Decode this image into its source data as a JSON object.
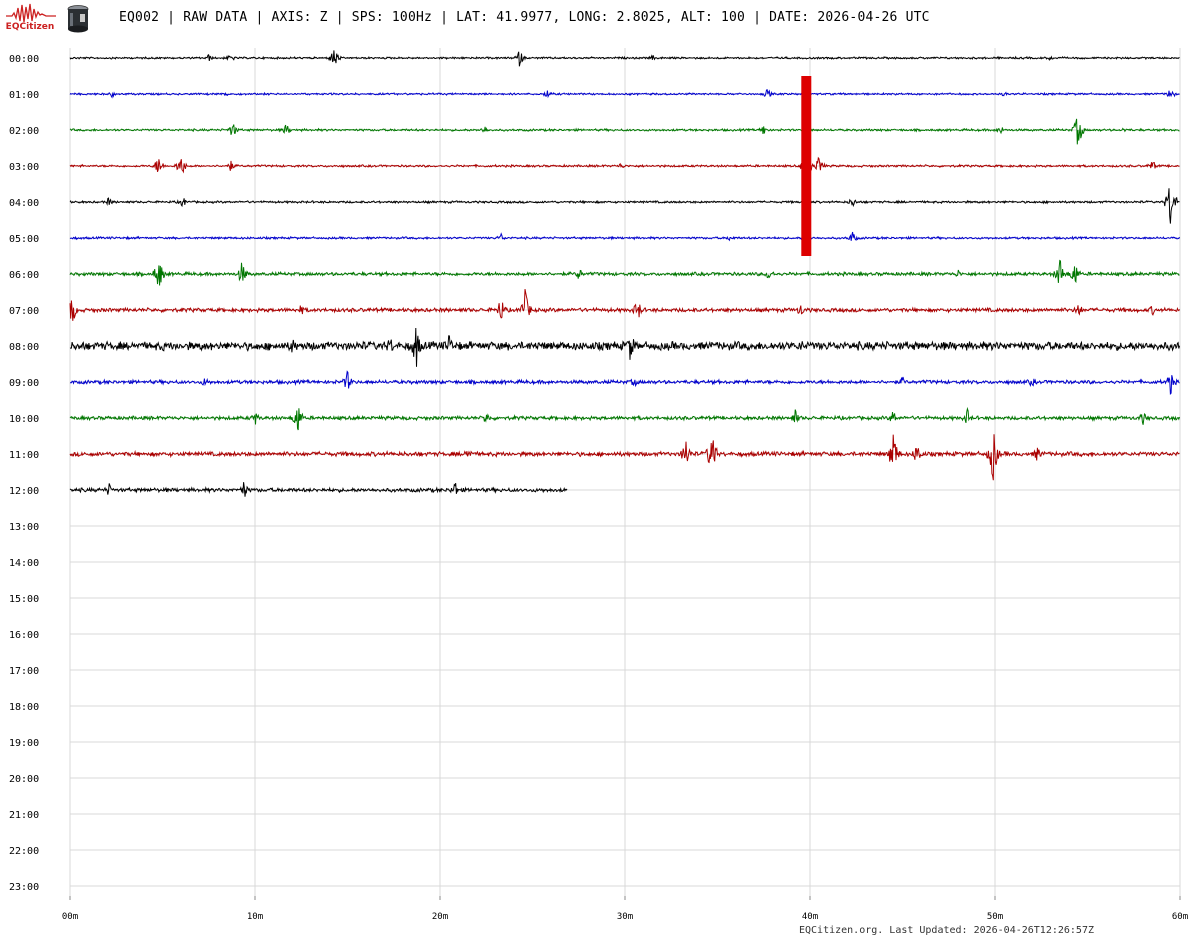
{
  "header": {
    "logo_text": "EQCitizen",
    "title": "EQ002 | RAW DATA | AXIS: Z | SPS: 100Hz | LAT: 41.9977, LONG: 2.8025, ALT: 100 | DATE: 2026-04-26 UTC"
  },
  "footer": {
    "text": "EQCitizen.org. Last Updated: 2026-04-26T12:26:57Z"
  },
  "colors": {
    "trace_cycle": [
      "#000000",
      "#0000cc",
      "#007700",
      "#aa0000"
    ],
    "event_marker": "#dd0000",
    "grid": "#d8d8d8"
  },
  "chart_data": {
    "type": "line",
    "title": "",
    "xlabel": "",
    "ylabel": "",
    "x_unit": "minutes",
    "xlim": [
      0,
      60
    ],
    "x_ticks": [
      0,
      10,
      20,
      30,
      40,
      50,
      60
    ],
    "x_tick_labels": [
      "00m",
      "10m",
      "20m",
      "30m",
      "40m",
      "50m",
      "60m"
    ],
    "rows": [
      "00:00",
      "01:00",
      "02:00",
      "03:00",
      "04:00",
      "05:00",
      "06:00",
      "07:00",
      "08:00",
      "09:00",
      "10:00",
      "11:00",
      "12:00",
      "13:00",
      "14:00",
      "15:00",
      "16:00",
      "17:00",
      "18:00",
      "19:00",
      "20:00",
      "21:00",
      "22:00",
      "23:00"
    ],
    "traces": [
      {
        "hour": "00:00",
        "end_min": 60,
        "noise": 0.8,
        "spikes": [
          [
            7.5,
            4
          ],
          [
            8.7,
            5
          ],
          [
            14.3,
            12
          ],
          [
            24.3,
            9
          ],
          [
            31.5,
            3
          ],
          [
            53,
            3
          ]
        ]
      },
      {
        "hour": "01:00",
        "end_min": 60,
        "noise": 0.8,
        "spikes": [
          [
            2.3,
            4
          ],
          [
            8.5,
            3
          ],
          [
            25.8,
            5
          ],
          [
            37.7,
            6
          ],
          [
            50.5,
            3
          ],
          [
            59.5,
            7
          ]
        ]
      },
      {
        "hour": "02:00",
        "end_min": 60,
        "noise": 0.9,
        "spikes": [
          [
            8.8,
            9
          ],
          [
            11.7,
            7
          ],
          [
            22.4,
            5
          ],
          [
            37.5,
            6
          ],
          [
            50.3,
            5
          ],
          [
            54.5,
            20
          ],
          [
            57,
            3
          ]
        ]
      },
      {
        "hour": "03:00",
        "end_min": 60,
        "noise": 0.9,
        "spikes": [
          [
            4.8,
            12
          ],
          [
            6.0,
            14
          ],
          [
            8.7,
            6
          ],
          [
            29.8,
            4
          ],
          [
            39.8,
            22
          ],
          [
            40.5,
            12
          ],
          [
            58.5,
            7
          ]
        ]
      },
      {
        "hour": "04:00",
        "end_min": 60,
        "noise": 0.9,
        "spikes": [
          [
            2.1,
            5
          ],
          [
            6.1,
            6
          ],
          [
            42.3,
            6
          ],
          [
            59.5,
            30
          ]
        ]
      },
      {
        "hour": "05:00",
        "end_min": 60,
        "noise": 0.9,
        "spikes": [
          [
            23.3,
            5
          ],
          [
            35.7,
            4
          ],
          [
            39.8,
            8
          ],
          [
            42.3,
            7
          ]
        ]
      },
      {
        "hour": "06:00",
        "end_min": 60,
        "noise": 1.4,
        "spikes": [
          [
            4.8,
            20
          ],
          [
            9.3,
            14
          ],
          [
            27.5,
            7
          ],
          [
            37.8,
            8
          ],
          [
            48,
            5
          ],
          [
            53.5,
            18
          ],
          [
            54.3,
            16
          ]
        ]
      },
      {
        "hour": "07:00",
        "end_min": 60,
        "noise": 1.6,
        "spikes": [
          [
            0.1,
            18
          ],
          [
            12.5,
            6
          ],
          [
            23.3,
            14
          ],
          [
            24.6,
            22
          ],
          [
            30.5,
            5
          ],
          [
            30.7,
            12
          ],
          [
            39.5,
            8
          ],
          [
            54.5,
            9
          ],
          [
            58.5,
            6
          ]
        ]
      },
      {
        "hour": "08:00",
        "end_min": 60,
        "noise": 3.5,
        "spikes": [
          [
            5.0,
            6
          ],
          [
            12.0,
            10
          ],
          [
            17.3,
            12
          ],
          [
            18.7,
            26
          ],
          [
            20.5,
            14
          ],
          [
            30.3,
            18
          ],
          [
            39.5,
            8
          ],
          [
            50,
            6
          ]
        ]
      },
      {
        "hour": "09:00",
        "end_min": 60,
        "noise": 1.5,
        "spikes": [
          [
            7.3,
            6
          ],
          [
            15.0,
            12
          ],
          [
            30.5,
            6
          ],
          [
            45,
            6
          ],
          [
            52,
            6
          ],
          [
            59.5,
            14
          ]
        ]
      },
      {
        "hour": "10:00",
        "end_min": 60,
        "noise": 1.5,
        "spikes": [
          [
            10.0,
            8
          ],
          [
            12.3,
            20
          ],
          [
            22.5,
            8
          ],
          [
            39.2,
            9
          ],
          [
            44.5,
            9
          ],
          [
            48.5,
            10
          ],
          [
            58,
            8
          ]
        ]
      },
      {
        "hour": "11:00",
        "end_min": 60,
        "noise": 1.8,
        "spikes": [
          [
            21.5,
            9
          ],
          [
            33.3,
            18
          ],
          [
            34.7,
            28
          ],
          [
            44.5,
            26
          ],
          [
            45.8,
            14
          ],
          [
            49.9,
            30
          ],
          [
            52.3,
            9
          ]
        ]
      },
      {
        "hour": "12:00",
        "end_min": 26.9,
        "noise": 1.6,
        "spikes": [
          [
            2.1,
            8
          ],
          [
            9.4,
            10
          ],
          [
            20.8,
            10
          ]
        ]
      }
    ],
    "event_marker": {
      "minute": 39.8,
      "from_hour": "01:00",
      "to_hour": "06:00"
    }
  }
}
